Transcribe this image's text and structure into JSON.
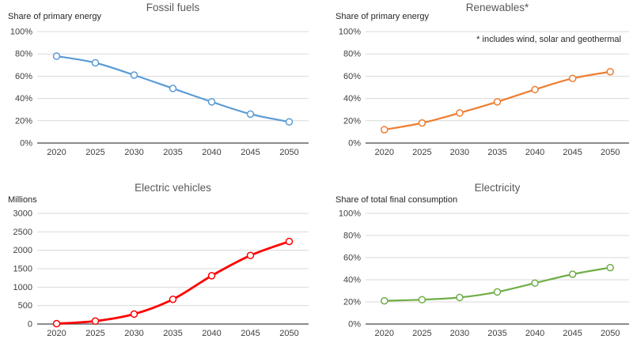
{
  "figure": {
    "background": "#ffffff",
    "grid_color": "#d9d9d9",
    "axis_color": "#666666",
    "title_color": "#595959",
    "tick_color": "#404040"
  },
  "chart_data": [
    {
      "id": "fossil-fuels",
      "type": "line",
      "title": "Fossil fuels",
      "ylabel": "Share of primary energy",
      "annotation": "",
      "categories": [
        "2020",
        "2025",
        "2030",
        "2035",
        "2040",
        "2045",
        "2050"
      ],
      "values": [
        78,
        72,
        61,
        49,
        37,
        26,
        19
      ],
      "unit": "%",
      "ylim": [
        0,
        100
      ],
      "yticks": [
        "0%",
        "20%",
        "40%",
        "60%",
        "80%",
        "100%"
      ],
      "grid": true,
      "legend": "none",
      "marker": "open-circle",
      "color": "#5b9bd5",
      "line_width": 2.2
    },
    {
      "id": "renewables",
      "type": "line",
      "title": "Renewables*",
      "ylabel": "Share of primary energy",
      "annotation": "* includes wind, solar and geothermal",
      "categories": [
        "2020",
        "2025",
        "2030",
        "2035",
        "2040",
        "2045",
        "2050"
      ],
      "values": [
        12,
        18,
        27,
        37,
        48,
        58,
        64
      ],
      "unit": "%",
      "ylim": [
        0,
        100
      ],
      "yticks": [
        "0%",
        "20%",
        "40%",
        "60%",
        "80%",
        "100%"
      ],
      "grid": true,
      "legend": "none",
      "marker": "open-circle",
      "color": "#ed7d31",
      "line_width": 2.2
    },
    {
      "id": "electric-vehicles",
      "type": "line",
      "title": "Electric vehicles",
      "ylabel": "Millions",
      "annotation": "",
      "categories": [
        "2020",
        "2025",
        "2030",
        "2035",
        "2040",
        "2045",
        "2050"
      ],
      "values": [
        10,
        80,
        270,
        670,
        1310,
        1860,
        2240
      ],
      "unit": "",
      "ylim": [
        0,
        3000
      ],
      "yticks": [
        "0",
        "500",
        "1000",
        "1500",
        "2000",
        "2500",
        "3000"
      ],
      "grid": true,
      "legend": "none",
      "marker": "open-circle",
      "color": "#ff0000",
      "line_width": 2.8
    },
    {
      "id": "electricity",
      "type": "line",
      "title": "Electricity",
      "ylabel": "Share of total final consumption",
      "annotation": "",
      "categories": [
        "2020",
        "2025",
        "2030",
        "2035",
        "2040",
        "2045",
        "2050"
      ],
      "values": [
        21,
        22,
        24,
        29,
        37,
        45,
        51
      ],
      "unit": "%",
      "ylim": [
        0,
        100
      ],
      "yticks": [
        "0%",
        "20%",
        "40%",
        "60%",
        "80%",
        "100%"
      ],
      "grid": true,
      "legend": "none",
      "marker": "open-circle",
      "color": "#70ad47",
      "line_width": 2.2
    }
  ]
}
